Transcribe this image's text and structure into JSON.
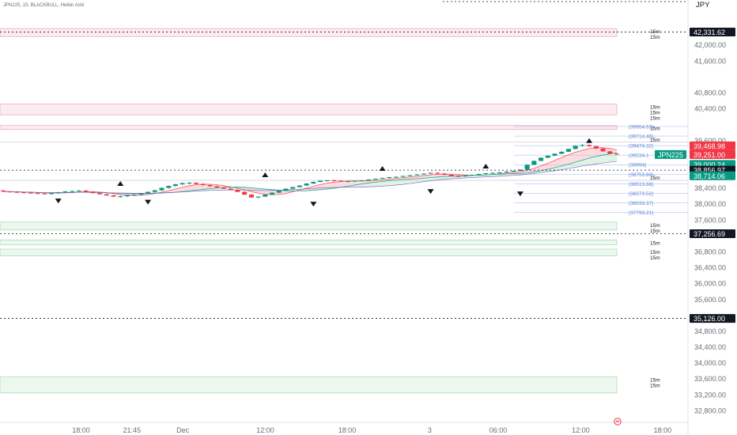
{
  "header": {
    "symbol_line": "JPN225, 15, BLACKBULL, Heikin Ashi",
    "currency": "JPY"
  },
  "watermark_icon": "tradingview-logo-icon",
  "colors": {
    "up": "#089981",
    "down": "#f23645",
    "tag_dark": "#131722",
    "tag_green": "#089981",
    "tag_red": "#f23645",
    "zone_pink": "#f7c7d0",
    "zone_green": "#c9ecd2",
    "level_blue": "#5b7fdb",
    "band_red": "#f8b4b8",
    "band_green": "#b7e4c7"
  },
  "chart_data": {
    "type": "candlestick",
    "style": "Heikin Ashi",
    "timeframe": "15",
    "ylim": [
      32550,
      42900
    ],
    "yticks": [
      "42,000.00",
      "41,600.00",
      "40,800.00",
      "40,400.00",
      "39,600.00",
      "38,400.00",
      "38,000.00",
      "37,600.00",
      "36,800.00",
      "36,400.00",
      "36,000.00",
      "35,600.00",
      "34,800.00",
      "34,400.00",
      "34,000.00",
      "33,600.00",
      "33,200.00",
      "32,800.00"
    ],
    "ytick_values": [
      42000,
      41600,
      40800,
      40400,
      39600,
      38400,
      38000,
      37600,
      36800,
      36400,
      36000,
      35600,
      34800,
      34400,
      34000,
      33600,
      33200,
      32800
    ],
    "xticks": [
      {
        "label": "18:00",
        "x": 0.11
      },
      {
        "label": "21:45",
        "x": 0.179
      },
      {
        "label": "Dec",
        "x": 0.248
      },
      {
        "label": "12:00",
        "x": 0.36
      },
      {
        "label": "18:00",
        "x": 0.471
      },
      {
        "label": "3",
        "x": 0.583
      },
      {
        "label": "06:00",
        "x": 0.676
      },
      {
        "label": "12:00",
        "x": 0.788
      },
      {
        "label": "18:00",
        "x": 0.899
      }
    ],
    "price_tags": [
      {
        "label": "42,331.62",
        "value": 42331.62,
        "color": "dark"
      },
      {
        "label": "39,468.98",
        "value": 39468.98,
        "color": "red"
      },
      {
        "label": "39,251.00",
        "value": 39251,
        "color": "red"
      },
      {
        "label": "39,000.24",
        "value": 39000.24,
        "color": "green"
      },
      {
        "label": "38,856.97",
        "value": 38856.97,
        "color": "dark"
      },
      {
        "label": "38,714.06",
        "value": 38714.06,
        "color": "green"
      },
      {
        "label": "37,256.69",
        "value": 37256.69,
        "color": "dark"
      },
      {
        "label": "35,126.00",
        "value": 35126,
        "color": "dark"
      }
    ],
    "symbol_tag": {
      "label": "JPN225",
      "value": 39251
    },
    "dashed_levels": [
      42331.62,
      38856.97,
      37256.69,
      35126
    ],
    "supply_zones": [
      {
        "top": 42420,
        "bottom": 42220,
        "labels": [
          "15m",
          "15m"
        ]
      },
      {
        "top": 40520,
        "bottom": 40250,
        "labels": [
          "15m",
          "15m",
          "15m"
        ]
      },
      {
        "top": 39980,
        "bottom": 39880,
        "labels": [
          "15m"
        ]
      }
    ],
    "demand_zones": [
      {
        "top": 37550,
        "bottom": 37350,
        "labels": [
          "15m",
          "15m"
        ]
      },
      {
        "top": 37100,
        "bottom": 36980,
        "labels": [
          "15m"
        ]
      },
      {
        "top": 36870,
        "bottom": 36700,
        "labels": [
          "15m",
          "15m"
        ]
      },
      {
        "top": 33650,
        "bottom": 33250,
        "labels": [
          "15m",
          "15m"
        ]
      }
    ],
    "fib_levels": [
      {
        "label": "(39954.63)",
        "value": 39954.63
      },
      {
        "label": "(39714.46)",
        "value": 39714.46
      },
      {
        "label": "(39474.32)",
        "value": 39474.32
      },
      {
        "label": "(39234.1",
        "value": 39234.1
      },
      {
        "label": "(38994)",
        "value": 38994
      },
      {
        "label": "(38753.84)",
        "value": 38753.84
      },
      {
        "label": "(38513.68)",
        "value": 38513.68
      },
      {
        "label": "(38273.52)",
        "value": 38273.52
      },
      {
        "label": "(38033.37)",
        "value": 38033.37
      },
      {
        "label": "(37793.21)",
        "value": 37793.21
      }
    ],
    "top_labels": [
      {
        "label": "15m",
        "value": 39560
      },
      {
        "label": "15m",
        "value": 38600
      }
    ],
    "candles_ohlc": [
      [
        38345,
        38360,
        38300,
        38320
      ],
      [
        38320,
        38340,
        38290,
        38310
      ],
      [
        38310,
        38330,
        38280,
        38300
      ],
      [
        38300,
        38320,
        38270,
        38290
      ],
      [
        38290,
        38310,
        38260,
        38280
      ],
      [
        38280,
        38300,
        38250,
        38270
      ],
      [
        38270,
        38295,
        38240,
        38260
      ],
      [
        38260,
        38290,
        38240,
        38275
      ],
      [
        38275,
        38310,
        38260,
        38300
      ],
      [
        38300,
        38340,
        38290,
        38320
      ],
      [
        38320,
        38350,
        38300,
        38330
      ],
      [
        38330,
        38360,
        38310,
        38340
      ],
      [
        38340,
        38360,
        38300,
        38310
      ],
      [
        38310,
        38330,
        38270,
        38280
      ],
      [
        38280,
        38300,
        38240,
        38250
      ],
      [
        38250,
        38270,
        38210,
        38220
      ],
      [
        38220,
        38240,
        38180,
        38190
      ],
      [
        38190,
        38220,
        38160,
        38200
      ],
      [
        38200,
        38240,
        38180,
        38230
      ],
      [
        38230,
        38260,
        38200,
        38240
      ],
      [
        38240,
        38280,
        38220,
        38270
      ],
      [
        38270,
        38320,
        38250,
        38310
      ],
      [
        38310,
        38360,
        38290,
        38350
      ],
      [
        38350,
        38420,
        38330,
        38410
      ],
      [
        38410,
        38470,
        38390,
        38460
      ],
      [
        38460,
        38520,
        38440,
        38500
      ],
      [
        38500,
        38550,
        38480,
        38530
      ],
      [
        38530,
        38560,
        38500,
        38540
      ],
      [
        38540,
        38560,
        38500,
        38510
      ],
      [
        38510,
        38530,
        38470,
        38480
      ],
      [
        38480,
        38500,
        38440,
        38450
      ],
      [
        38450,
        38470,
        38410,
        38420
      ],
      [
        38420,
        38440,
        38380,
        38390
      ],
      [
        38390,
        38420,
        38350,
        38360
      ],
      [
        38360,
        38380,
        38300,
        38310
      ],
      [
        38310,
        38330,
        38230,
        38240
      ],
      [
        38240,
        38260,
        38160,
        38170
      ],
      [
        38170,
        38200,
        38140,
        38190
      ],
      [
        38190,
        38250,
        38180,
        38240
      ],
      [
        38240,
        38300,
        38230,
        38290
      ],
      [
        38290,
        38350,
        38280,
        38340
      ],
      [
        38340,
        38400,
        38330,
        38390
      ],
      [
        38390,
        38440,
        38380,
        38430
      ],
      [
        38430,
        38480,
        38420,
        38470
      ],
      [
        38470,
        38530,
        38460,
        38520
      ],
      [
        38520,
        38570,
        38510,
        38560
      ],
      [
        38560,
        38600,
        38550,
        38590
      ],
      [
        38590,
        38610,
        38570,
        38600
      ],
      [
        38600,
        38620,
        38580,
        38590
      ],
      [
        38590,
        38600,
        38560,
        38570
      ],
      [
        38570,
        38590,
        38550,
        38580
      ],
      [
        38580,
        38600,
        38560,
        38590
      ],
      [
        38590,
        38610,
        38570,
        38600
      ],
      [
        38600,
        38630,
        38590,
        38620
      ],
      [
        38620,
        38650,
        38610,
        38640
      ],
      [
        38640,
        38670,
        38630,
        38660
      ],
      [
        38660,
        38690,
        38650,
        38680
      ],
      [
        38680,
        38700,
        38660,
        38690
      ],
      [
        38690,
        38720,
        38680,
        38710
      ],
      [
        38710,
        38740,
        38700,
        38730
      ],
      [
        38730,
        38760,
        38720,
        38750
      ],
      [
        38750,
        38780,
        38740,
        38770
      ],
      [
        38770,
        38800,
        38750,
        38790
      ],
      [
        38790,
        38810,
        38760,
        38770
      ],
      [
        38770,
        38790,
        38730,
        38740
      ],
      [
        38740,
        38760,
        38700,
        38710
      ],
      [
        38710,
        38730,
        38680,
        38700
      ],
      [
        38700,
        38730,
        38690,
        38720
      ],
      [
        38720,
        38750,
        38710,
        38740
      ],
      [
        38740,
        38770,
        38730,
        38760
      ],
      [
        38760,
        38790,
        38750,
        38780
      ],
      [
        38780,
        38800,
        38760,
        38790
      ],
      [
        38790,
        38810,
        38770,
        38800
      ],
      [
        38800,
        38830,
        38790,
        38820
      ],
      [
        38820,
        38850,
        38810,
        38840
      ],
      [
        38840,
        38880,
        38830,
        38870
      ],
      [
        38870,
        39000,
        38860,
        38990
      ],
      [
        38990,
        39100,
        38980,
        39090
      ],
      [
        39090,
        39180,
        39080,
        39170
      ],
      [
        39170,
        39230,
        39160,
        39220
      ],
      [
        39220,
        39280,
        39210,
        39270
      ],
      [
        39270,
        39330,
        39260,
        39320
      ],
      [
        39320,
        39400,
        39310,
        39390
      ],
      [
        39390,
        39480,
        39380,
        39470
      ],
      [
        39470,
        39520,
        39440,
        39490
      ],
      [
        39490,
        39510,
        39440,
        39460
      ],
      [
        39460,
        39470,
        39380,
        39400
      ],
      [
        39400,
        39420,
        39320,
        39330
      ],
      [
        39330,
        39350,
        39260,
        39270
      ],
      [
        39270,
        39290,
        39230,
        39251
      ]
    ],
    "markers_up": [
      {
        "i": 17,
        "value": 38520
      },
      {
        "i": 38,
        "value": 38740
      },
      {
        "i": 55,
        "value": 38900
      },
      {
        "i": 70,
        "value": 38960
      },
      {
        "i": 85,
        "value": 39600
      }
    ],
    "markers_down": [
      {
        "i": 8,
        "value": 38080
      },
      {
        "i": 21,
        "value": 38050
      },
      {
        "i": 45,
        "value": 38000
      },
      {
        "i": 62,
        "value": 38320
      },
      {
        "i": 75,
        "value": 38260
      }
    ]
  }
}
